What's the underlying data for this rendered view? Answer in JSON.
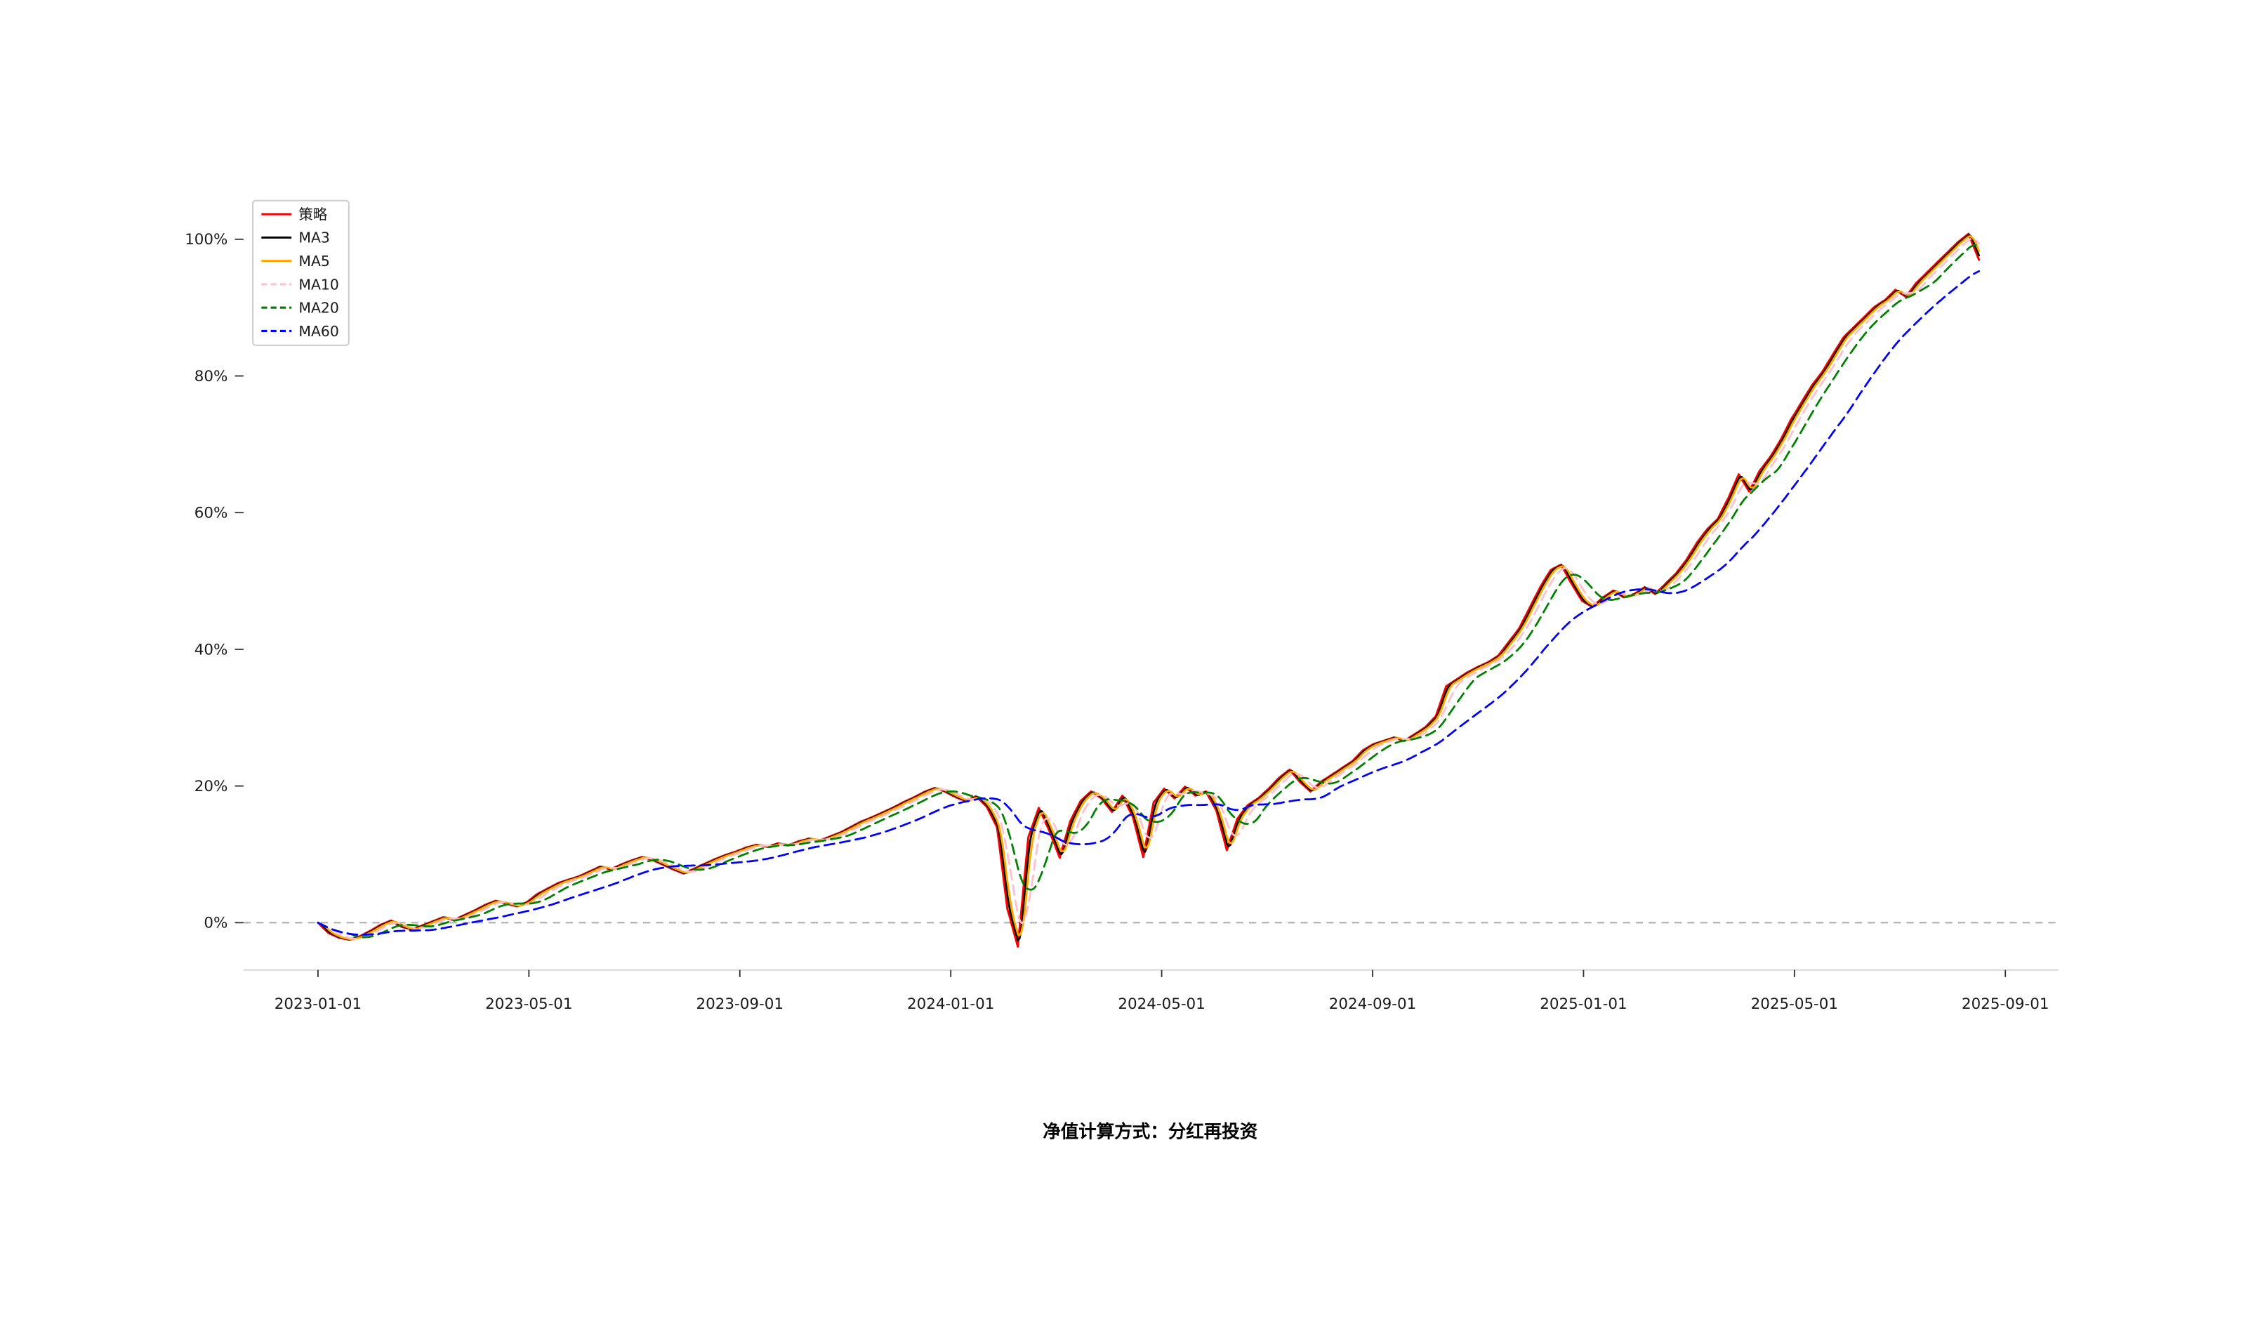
{
  "page": {
    "background": "#ffffff"
  },
  "chart_data": {
    "type": "line",
    "title": "",
    "caption": "净值计算方式：分红再投资",
    "legend_position": "upper-left",
    "grid": "zero-line-only",
    "zero_line": true,
    "x_tick_labels": [
      "2023-01-01",
      "2023-05-01",
      "2023-09-01",
      "2024-01-01",
      "2024-05-01",
      "2024-09-01",
      "2025-01-01",
      "2025-05-01",
      "2025-09-01"
    ],
    "y_ticks": [
      {
        "label": "0%",
        "value": 0
      },
      {
        "label": "20%",
        "value": 20
      },
      {
        "label": "40%",
        "value": 40
      },
      {
        "label": "60%",
        "value": 60
      },
      {
        "label": "80%",
        "value": 80
      },
      {
        "label": "100%",
        "value": 100
      }
    ],
    "ylim": [
      -8,
      107
    ],
    "x_range_months": [
      0,
      31.5
    ],
    "series_defs": [
      {
        "id": "strategy",
        "name": "策略",
        "color": "#ff0000",
        "dash": false,
        "window_days": 1
      },
      {
        "id": "ma3",
        "name": "MA3",
        "color": "#000000",
        "dash": false,
        "window_days": 3
      },
      {
        "id": "ma5",
        "name": "MA5",
        "color": "#ffa500",
        "dash": false,
        "window_days": 5
      },
      {
        "id": "ma10",
        "name": "MA10",
        "color": "#ffc0cb",
        "dash": true,
        "window_days": 10
      },
      {
        "id": "ma20",
        "name": "MA20",
        "color": "#008000",
        "dash": true,
        "window_days": 20
      },
      {
        "id": "ma60",
        "name": "MA60",
        "color": "#0000ff",
        "dash": true,
        "window_days": 60
      }
    ],
    "upsample_per_anchor": 6,
    "strategy_values_pct": [
      0.0,
      -1.5,
      -2.2,
      -2.5,
      -2.0,
      -1.2,
      -0.3,
      0.3,
      -0.6,
      -1.0,
      -0.4,
      0.2,
      0.8,
      0.4,
      1.1,
      1.8,
      2.6,
      3.2,
      2.8,
      2.4,
      3.0,
      4.2,
      5.0,
      5.8,
      6.3,
      6.8,
      7.5,
      8.2,
      7.8,
      8.5,
      9.1,
      9.6,
      9.2,
      8.5,
      7.8,
      7.2,
      7.9,
      8.6,
      9.3,
      9.9,
      10.4,
      11.0,
      11.4,
      11.1,
      11.6,
      11.3,
      11.9,
      12.3,
      12.0,
      12.6,
      13.2,
      14.0,
      14.8,
      15.4,
      16.1,
      16.8,
      17.6,
      18.3,
      19.1,
      19.7,
      19.2,
      18.4,
      17.8,
      18.5,
      17.0,
      14.0,
      2.0,
      -3.5,
      12.5,
      16.8,
      13.5,
      9.5,
      14.8,
      17.8,
      19.2,
      18.2,
      16.2,
      18.6,
      15.5,
      9.6,
      17.6,
      19.6,
      18.2,
      19.9,
      18.6,
      19.2,
      16.4,
      10.6,
      15.2,
      17.2,
      18.2,
      19.6,
      21.2,
      22.4,
      20.6,
      19.2,
      20.6,
      21.6,
      22.6,
      23.6,
      25.2,
      26.1,
      26.6,
      27.1,
      26.6,
      27.6,
      28.6,
      30.2,
      34.6,
      35.6,
      36.6,
      37.4,
      38.1,
      39.1,
      41.1,
      43.1,
      46.1,
      49.1,
      51.6,
      52.4,
      49.6,
      47.1,
      46.2,
      47.6,
      48.6,
      47.6,
      48.1,
      49.1,
      48.1,
      49.6,
      51.1,
      53.1,
      55.6,
      57.6,
      59.1,
      62.1,
      65.6,
      63.1,
      66.1,
      68.1,
      70.6,
      73.6,
      76.1,
      78.6,
      80.6,
      83.1,
      85.6,
      87.1,
      88.6,
      90.1,
      91.1,
      92.6,
      91.6,
      93.6,
      95.1,
      96.6,
      98.1,
      99.6,
      100.8,
      97.0
    ]
  }
}
